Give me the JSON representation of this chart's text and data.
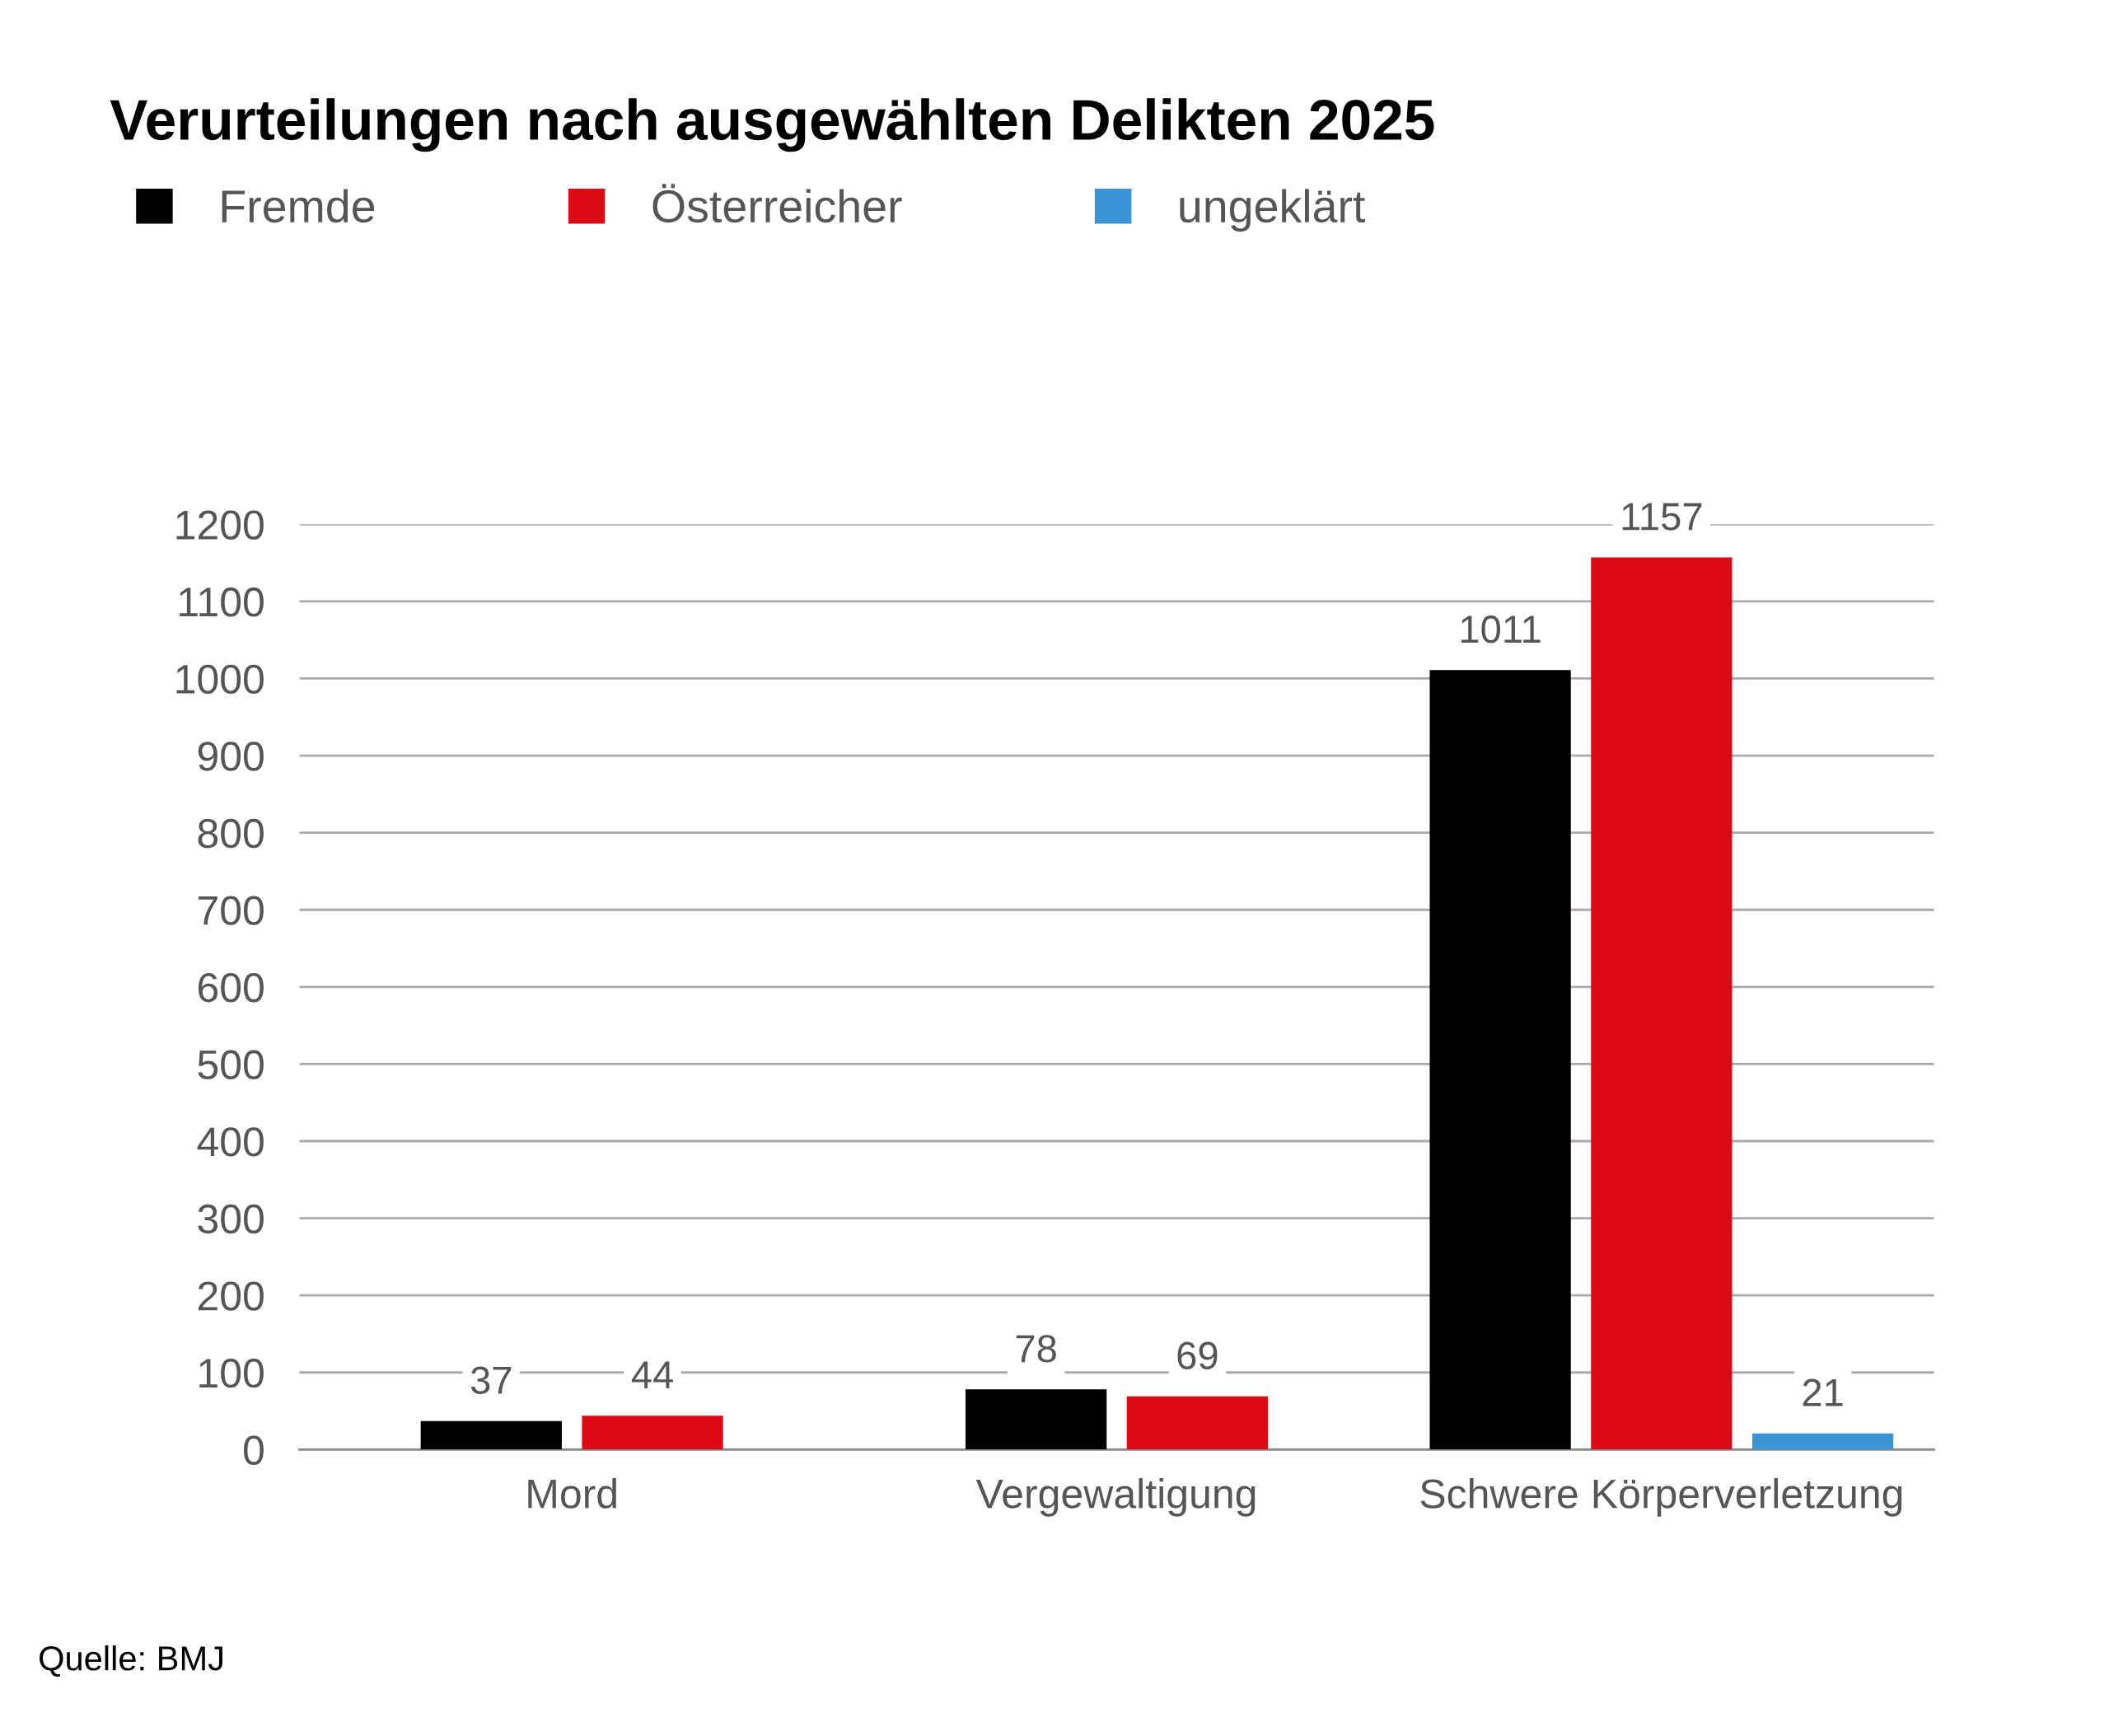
{
  "chart_data": {
    "type": "bar",
    "title": "Verurteilungen nach ausgewählten Delikten 2025",
    "categories": [
      "Mord",
      "Vergewaltigung",
      "Schwere Körperverletzung"
    ],
    "series": [
      {
        "name": "Fremde",
        "color": "#000000",
        "values": [
          37,
          78,
          1011
        ]
      },
      {
        "name": "Österreicher",
        "color": "#dc0a14",
        "values": [
          44,
          69,
          1157
        ]
      },
      {
        "name": "ungeklärt",
        "color": "#3a95d4",
        "values": [
          null,
          null,
          21
        ]
      }
    ],
    "ylim": [
      0,
      1200
    ],
    "yticks": [
      0,
      100,
      200,
      300,
      400,
      500,
      600,
      700,
      800,
      900,
      1000,
      1100,
      1200
    ],
    "grid": "y",
    "legend": "top left",
    "data_labels": true,
    "annotations": [
      "Quelle: BMJ"
    ]
  }
}
